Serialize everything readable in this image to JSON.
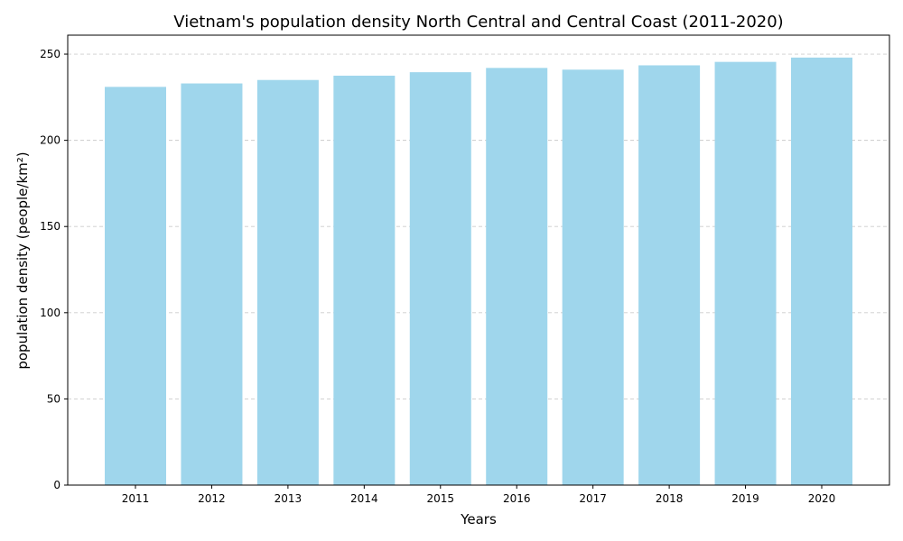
{
  "chart_data": {
    "type": "bar",
    "title": "Vietnam's population density North Central and Central Coast (2011-2020)",
    "xlabel": "Years",
    "ylabel": "population density (people/km²)",
    "categories": [
      "2011",
      "2012",
      "2013",
      "2014",
      "2015",
      "2016",
      "2017",
      "2018",
      "2019",
      "2020"
    ],
    "values": [
      231,
      233,
      235,
      237.5,
      239.5,
      242,
      241,
      243.5,
      245.5,
      248
    ],
    "ylim": [
      0,
      261
    ],
    "yticks": [
      0,
      50,
      100,
      150,
      200,
      250
    ],
    "grid": "y-dashed",
    "bar_color": "#9fd6ec"
  }
}
